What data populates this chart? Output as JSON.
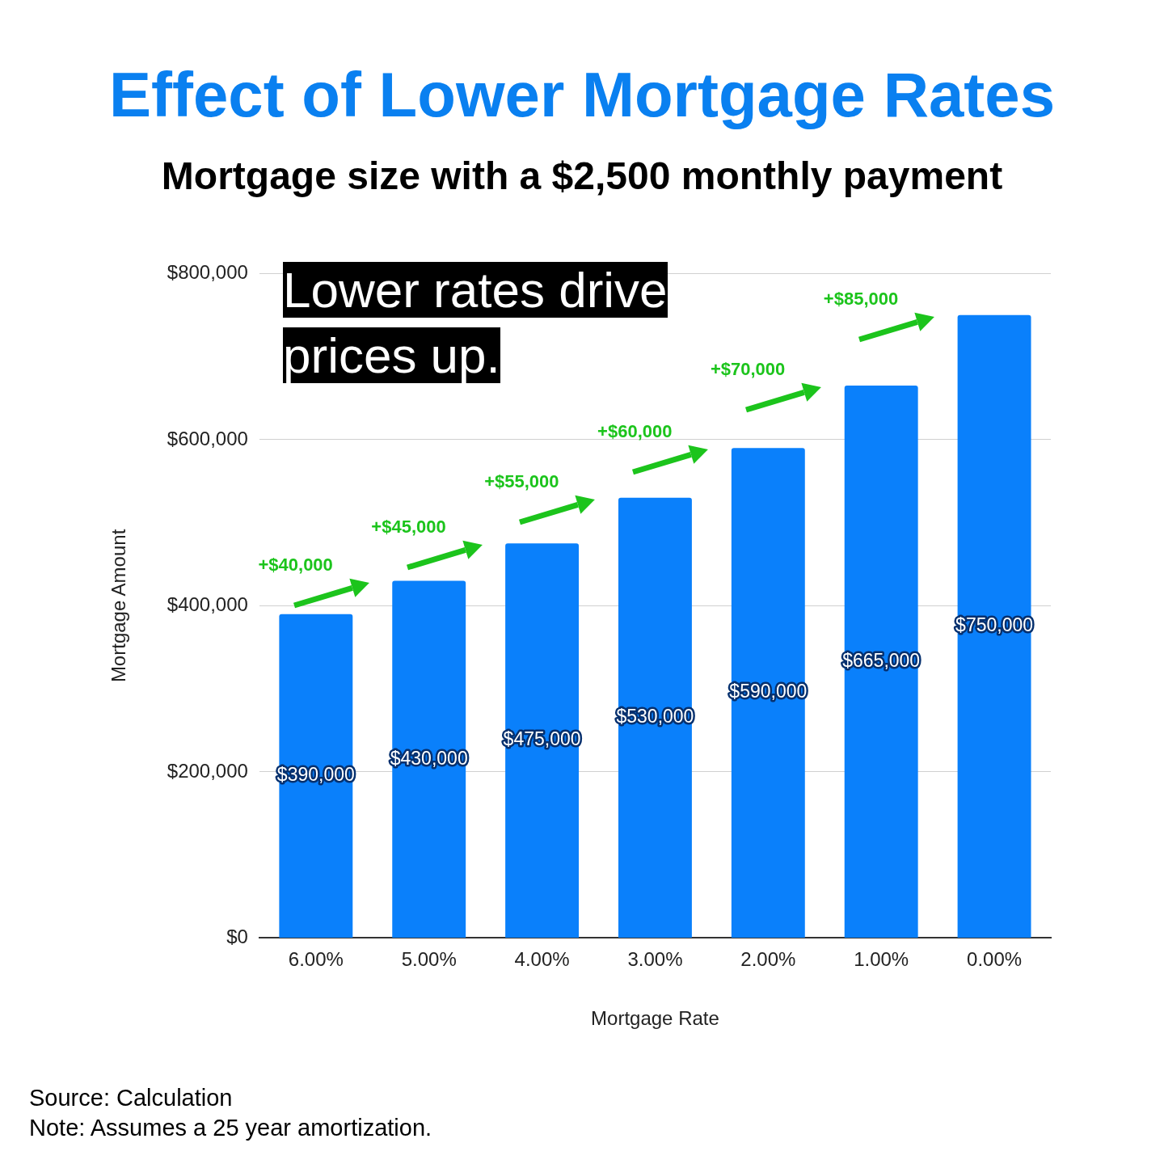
{
  "chart_data": {
    "type": "bar",
    "title": "Effect of Lower Mortgage Rates",
    "subtitle": "Mortgage size with a $2,500 monthly payment",
    "xlabel": "Mortgage Rate",
    "ylabel": "Mortgage Amount",
    "categories": [
      "6.00%",
      "5.00%",
      "4.00%",
      "3.00%",
      "2.00%",
      "1.00%",
      "0.00%"
    ],
    "values": [
      390000,
      430000,
      475000,
      530000,
      590000,
      665000,
      750000
    ],
    "value_labels": [
      "$390,000",
      "$430,000",
      "$475,000",
      "$530,000",
      "$590,000",
      "$665,000",
      "$750,000"
    ],
    "color": "#0a80fb",
    "ylim": [
      0,
      800000
    ],
    "yticks": [
      {
        "value": 0,
        "label": "$0"
      },
      {
        "value": 200000,
        "label": "$200,000"
      },
      {
        "value": 400000,
        "label": "$400,000"
      },
      {
        "value": 600000,
        "label": "$600,000"
      },
      {
        "value": 800000,
        "label": "$800,000"
      }
    ],
    "grid": "y",
    "annotations": [
      "Lower rates drive prices up.",
      "+$40,000",
      "+$45,000",
      "+$55,000",
      "+$60,000",
      "+$70,000",
      "+$85,000",
      "Source: Calculation",
      "Note: Assumes a 25 year amortization."
    ]
  }
}
